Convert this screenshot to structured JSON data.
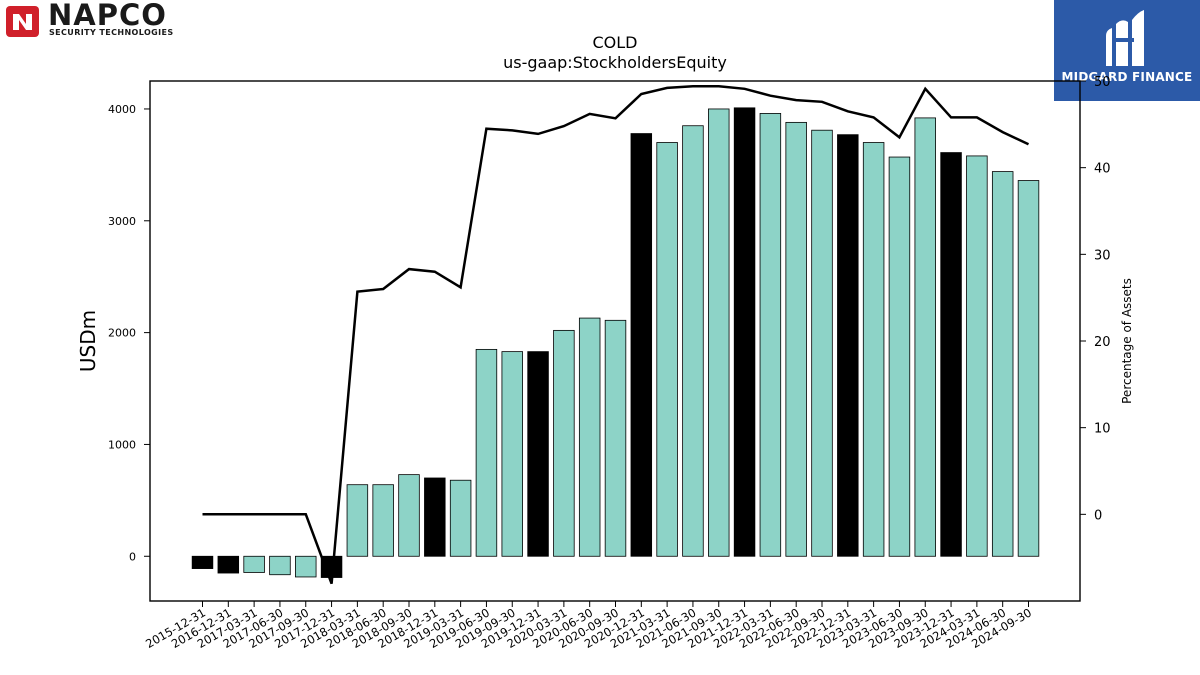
{
  "branding": {
    "left_logo": {
      "name": "NAPCO",
      "tagline": "SECURITY TECHNOLOGIES",
      "color": "#d0202a"
    },
    "right_logo": {
      "name": "MIDGARD FINANCE",
      "color": "#2c5aa8"
    }
  },
  "chart_data": {
    "type": "bar",
    "title": "COLD",
    "subtitle": "us-gaap:StockholdersEquity",
    "ylabel": "USDm",
    "y2label": "Percentage of Assets",
    "ylim": [
      -400,
      4250
    ],
    "y2lim": [
      -10,
      50
    ],
    "yticks": [
      0,
      1000,
      2000,
      3000,
      4000
    ],
    "y2ticks": [
      0,
      10,
      20,
      30,
      40,
      50
    ],
    "colors": {
      "quarter": "#8dd3c7",
      "year_end": "#000000",
      "line": "#000000"
    },
    "categories": [
      "2015-12-31",
      "2016-12-31",
      "2017-03-31",
      "2017-06-30",
      "2017-09-30",
      "2017-12-31",
      "2018-03-31",
      "2018-06-30",
      "2018-09-30",
      "2018-12-31",
      "2019-03-31",
      "2019-06-30",
      "2019-09-30",
      "2019-12-31",
      "2020-03-31",
      "2020-06-30",
      "2020-09-30",
      "2020-12-31",
      "2021-03-31",
      "2021-06-30",
      "2021-09-30",
      "2021-12-31",
      "2022-03-31",
      "2022-06-30",
      "2022-09-30",
      "2022-12-31",
      "2023-03-31",
      "2023-06-30",
      "2023-09-30",
      "2023-12-31",
      "2024-03-31",
      "2024-06-30",
      "2024-09-30"
    ],
    "series": [
      {
        "kind": "bar",
        "values": [
          -110,
          -150,
          -145,
          -165,
          -185,
          -190,
          640,
          640,
          730,
          700,
          680,
          1850,
          1830,
          1830,
          2020,
          2130,
          2110,
          3780,
          3700,
          3850,
          4000,
          4010,
          3960,
          3880,
          3810,
          3770,
          3700,
          3570,
          3920,
          3610,
          3580,
          3440,
          3360
        ],
        "year_end": [
          true,
          true,
          false,
          false,
          false,
          true,
          false,
          false,
          false,
          true,
          false,
          false,
          false,
          true,
          false,
          false,
          false,
          true,
          false,
          false,
          false,
          true,
          false,
          false,
          false,
          true,
          false,
          false,
          false,
          true,
          false,
          false,
          false
        ]
      },
      {
        "kind": "line",
        "axis": "right",
        "values": [
          0,
          0,
          0,
          0,
          0,
          -8,
          25.7,
          26,
          28.3,
          28,
          26.2,
          44.5,
          44.3,
          43.9,
          44.8,
          46.2,
          45.7,
          48.5,
          49.2,
          49.4,
          49.4,
          49.1,
          48.3,
          47.8,
          47.6,
          46.5,
          45.8,
          43.5,
          49.1,
          45.8,
          45.8,
          44.1,
          42.7
        ]
      }
    ]
  }
}
